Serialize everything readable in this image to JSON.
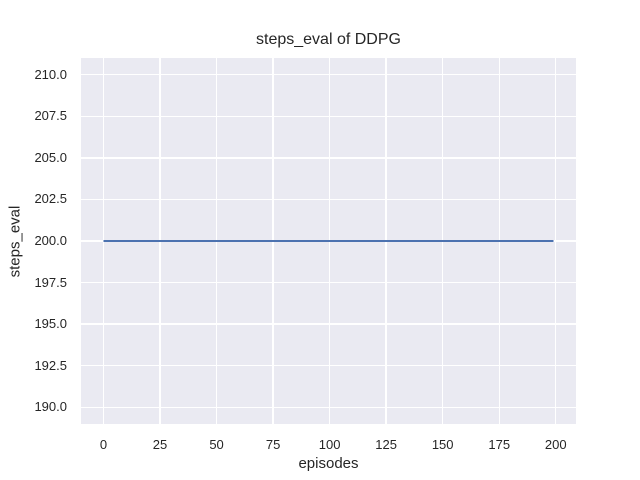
{
  "figure": {
    "background": "#ffffff",
    "axes_background": "#EAEAF2",
    "grid_color": "#ffffff",
    "text_color": "#262626"
  },
  "chart_data": {
    "type": "line",
    "title": "steps_eval of DDPG",
    "xlabel": "episodes",
    "ylabel": "steps_eval",
    "xlim": [
      -9.95,
      208.95
    ],
    "ylim": [
      189.0,
      211.0
    ],
    "x_ticks": [
      0,
      25,
      50,
      75,
      100,
      125,
      150,
      175,
      200
    ],
    "x_tick_labels": [
      "0",
      "25",
      "50",
      "75",
      "100",
      "125",
      "150",
      "175",
      "200"
    ],
    "y_ticks": [
      190.0,
      192.5,
      195.0,
      197.5,
      200.0,
      202.5,
      205.0,
      207.5,
      210.0
    ],
    "y_tick_labels": [
      "190.0",
      "192.5",
      "195.0",
      "197.5",
      "200.0",
      "202.5",
      "205.0",
      "207.5",
      "210.0"
    ],
    "grid": true,
    "legend_position": "none",
    "series": [
      {
        "name": "steps_eval",
        "color": "#4C72B0",
        "line_width": 2,
        "x": [
          0,
          199
        ],
        "y": [
          200,
          200
        ]
      }
    ]
  }
}
